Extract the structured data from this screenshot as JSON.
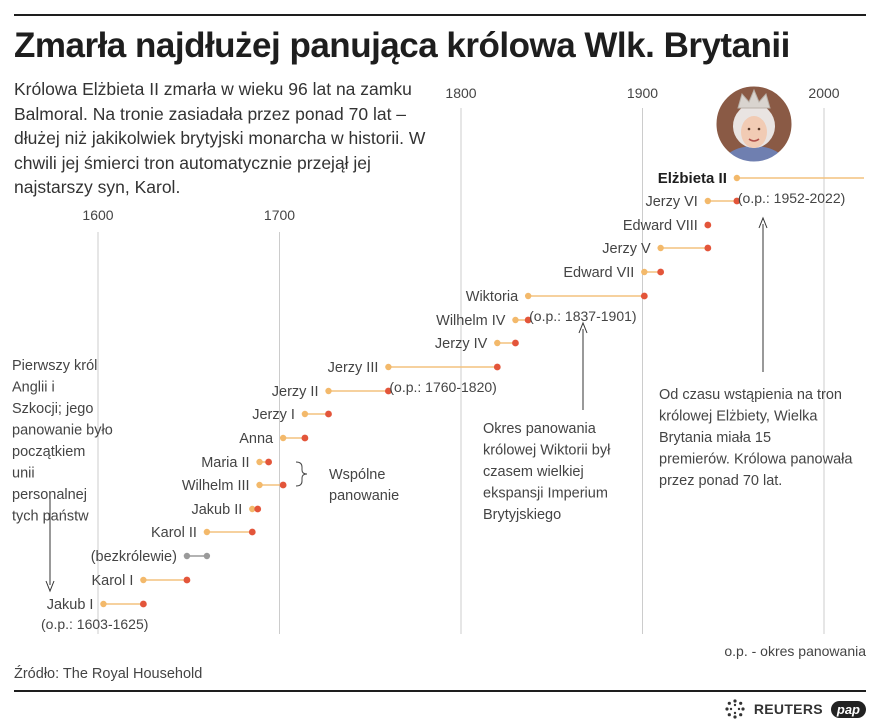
{
  "title": "Zmarła najdłużej panująca królowa Wlk. Brytanii",
  "intro": "Królowa Elżbieta II zmarła w wieku 96 lat na zamku Balmoral.  Na tronie zasiadała przez ponad 70 lat – dłużej niż jakikolwiek brytyjski monarcha w historii. W chwili jej śmierci tron automatycznie przejął jej najstarszy syn, Karol.",
  "source": "Źródło: The Royal Household",
  "logos": {
    "reuters": "REUTERS",
    "pap": "pap"
  },
  "colors": {
    "start_dot": "#f3b96b",
    "end_dot": "#e3553a",
    "bar": "#f4c27f",
    "gray": "#9a9a9a",
    "grid": "#cccccc",
    "text": "#444444",
    "ink": "#1e1e1e"
  },
  "icons": {
    "portrait": "queen-portrait-icon",
    "reuters": "reuters-dots-icon"
  },
  "chart_data": {
    "type": "timeline",
    "x_unit": "year",
    "x_ticks": [
      1600,
      1700,
      1800,
      1900,
      2000
    ],
    "monarchs": [
      {
        "name": "Jakub I",
        "start": 1603,
        "end": 1625,
        "note": "(o.p.: 1603-1625)"
      },
      {
        "name": "Karol I",
        "start": 1625,
        "end": 1649
      },
      {
        "name": "(bezkrólewie)",
        "start": 1649,
        "end": 1660,
        "interregnum": true
      },
      {
        "name": "Karol II",
        "start": 1660,
        "end": 1685
      },
      {
        "name": "Jakub II",
        "start": 1685,
        "end": 1688
      },
      {
        "name": "Wilhelm III",
        "start": 1689,
        "end": 1702
      },
      {
        "name": "Maria II",
        "start": 1689,
        "end": 1694
      },
      {
        "name": "Anna",
        "start": 1702,
        "end": 1714
      },
      {
        "name": "Jerzy I",
        "start": 1714,
        "end": 1727
      },
      {
        "name": "Jerzy II",
        "start": 1727,
        "end": 1760
      },
      {
        "name": "Jerzy III",
        "start": 1760,
        "end": 1820,
        "note": "(o.p.: 1760-1820)"
      },
      {
        "name": "Jerzy IV",
        "start": 1820,
        "end": 1830
      },
      {
        "name": "Wilhelm IV",
        "start": 1830,
        "end": 1837
      },
      {
        "name": "Wiktoria",
        "start": 1837,
        "end": 1901,
        "note": "(o.p.: 1837-1901)"
      },
      {
        "name": "Edward VII",
        "start": 1901,
        "end": 1910
      },
      {
        "name": "Jerzy V",
        "start": 1910,
        "end": 1936
      },
      {
        "name": "Edward VIII",
        "start": 1936,
        "end": 1936
      },
      {
        "name": "Jerzy VI",
        "start": 1936,
        "end": 1952
      },
      {
        "name": "Elżbieta II",
        "start": 1952,
        "end": 2022,
        "note": "(o.p.: 1952-2022)",
        "highlight": true
      }
    ],
    "annotations": {
      "first_king": "Pierwszy król Anglii i Szkocji; jego panowanie było początkiem unii personalnej tych państw",
      "joint_rule": "Wspólne panowanie",
      "victoria": "Okres panowania królowej Wiktorii był czasem wielkiej ekspansji Imperium Brytyjskiego",
      "elizabeth": "Od czasu wstąpienia na tron królowej Elżbiety, Wielka Brytania miała 15 premierów. Królowa panowała przez ponad 70 lat.",
      "legend": "o.p. - okres panowania"
    }
  }
}
